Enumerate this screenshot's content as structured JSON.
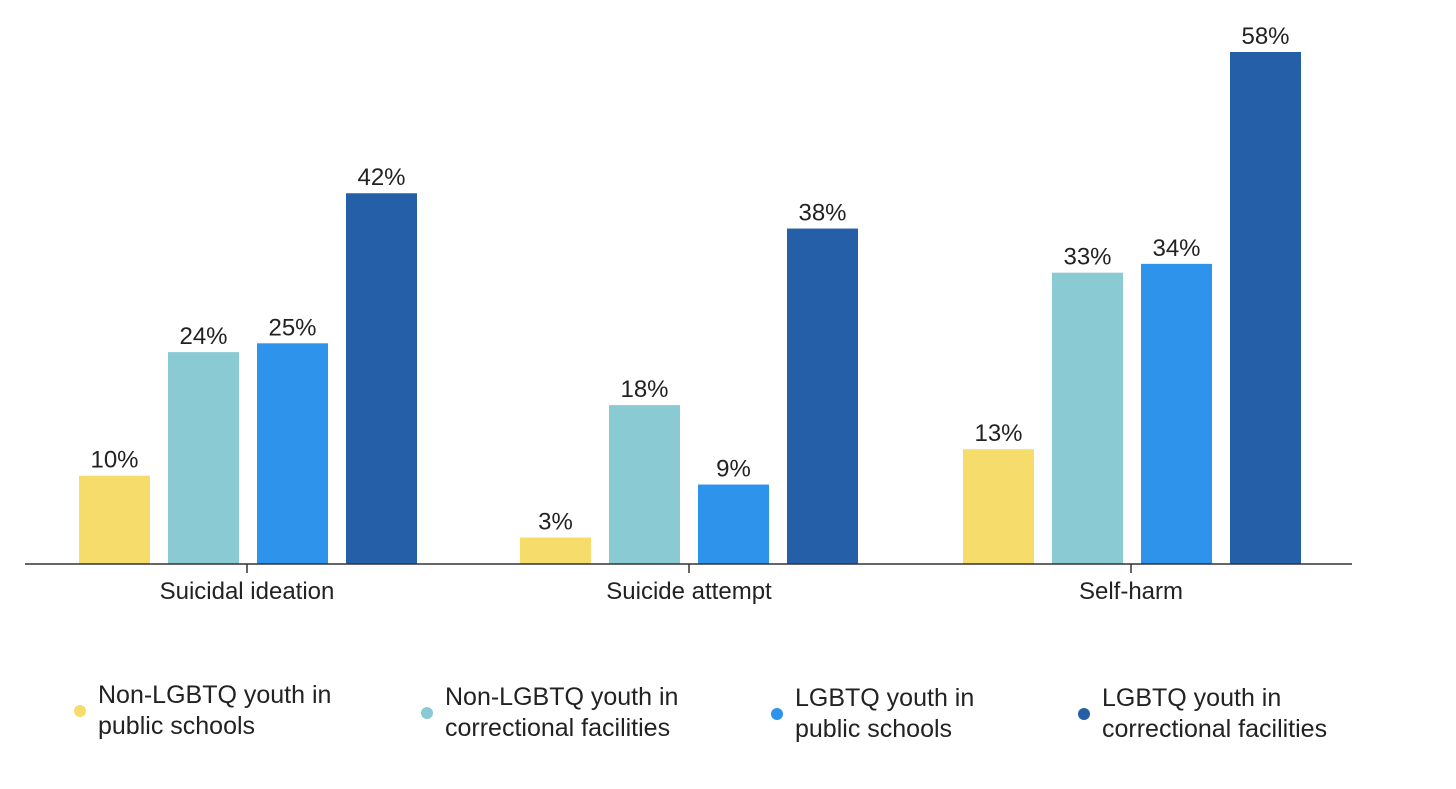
{
  "chart_data": {
    "type": "bar",
    "title": "",
    "xlabel": "",
    "ylabel": "",
    "ylim": [
      0,
      58
    ],
    "grid": false,
    "legend_position": "bottom",
    "value_suffix": "%",
    "categories": [
      "Suicidal ideation",
      "Suicide attempt",
      "Self-harm"
    ],
    "series": [
      {
        "name": "Non-LGBTQ youth in\npublic schools",
        "color": "#F5DC6B",
        "values": [
          10,
          3,
          13
        ],
        "labels": [
          "10%",
          "3%",
          "13%"
        ]
      },
      {
        "name": "Non-LGBTQ youth in\ncorrectional facilities",
        "color": "#8ACAD3",
        "values": [
          24,
          18,
          33
        ],
        "labels": [
          "24%",
          "18%",
          "33%"
        ]
      },
      {
        "name": "LGBTQ youth in\npublic schools",
        "color": "#2E93EA",
        "values": [
          25,
          9,
          34
        ],
        "labels": [
          "25%",
          "9%",
          "34%"
        ]
      },
      {
        "name": "LGBTQ youth in\ncorrectional facilities",
        "color": "#245FA8",
        "values": [
          42,
          38,
          58
        ],
        "labels": [
          "42%",
          "38%",
          "58%"
        ]
      }
    ]
  }
}
